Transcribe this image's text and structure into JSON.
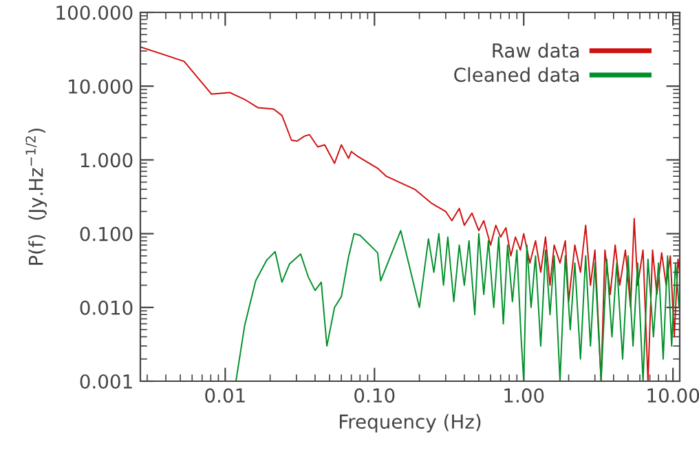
{
  "chart_data": {
    "type": "line",
    "xlabel": "Frequency (Hz)",
    "ylabel": "P(f)  (Jy.Hz$^{−1/2}$)",
    "log": "xy",
    "xlim": [
      0.0027,
      11.1
    ],
    "ylim": [
      0.001,
      100
    ],
    "xticks": [
      {
        "value": 0.01,
        "label": "0.01"
      },
      {
        "value": 0.1,
        "label": "0.10"
      },
      {
        "value": 1,
        "label": "1.00"
      },
      {
        "value": 10,
        "label": "10.00"
      }
    ],
    "yticks": [
      {
        "value": 0.001,
        "label": "0.001"
      },
      {
        "value": 0.01,
        "label": "0.010"
      },
      {
        "value": 0.1,
        "label": "0.100"
      },
      {
        "value": 1,
        "label": "1.000"
      },
      {
        "value": 10,
        "label": "10.000"
      },
      {
        "value": 100,
        "label": "100.000"
      }
    ],
    "grid": false,
    "legend": "top right",
    "line_style": "solid",
    "marker": "none",
    "series": [
      {
        "name": "Raw data",
        "color": "#d01010",
        "x": [
          0.0027,
          0.0053,
          0.0081,
          0.0107,
          0.0135,
          0.0166,
          0.0211,
          0.024,
          0.0278,
          0.0303,
          0.034,
          0.0367,
          0.0417,
          0.0464,
          0.054,
          0.06,
          0.067,
          0.07,
          0.076,
          0.105,
          0.12,
          0.186,
          0.24,
          0.3,
          0.33,
          0.37,
          0.4,
          0.45,
          0.5,
          0.54,
          0.6,
          0.65,
          0.7,
          0.76,
          0.82,
          0.88,
          0.95,
          1.0,
          1.1,
          1.2,
          1.3,
          1.4,
          1.5,
          1.6,
          1.75,
          1.9,
          2.0,
          2.2,
          2.4,
          2.6,
          2.8,
          3.0,
          3.3,
          3.5,
          3.8,
          4.1,
          4.4,
          4.8,
          5.2,
          5.5,
          5.8,
          6.3,
          6.8,
          7.3,
          7.8,
          8.4,
          9.0,
          9.6,
          10.2,
          10.8,
          11.1
        ],
        "values": [
          34,
          21.7,
          7.8,
          8.2,
          6.6,
          5.1,
          4.9,
          4.0,
          1.85,
          1.8,
          2.1,
          2.2,
          1.5,
          1.6,
          0.9,
          1.6,
          1.05,
          1.3,
          1.14,
          0.77,
          0.6,
          0.4,
          0.26,
          0.2,
          0.15,
          0.22,
          0.13,
          0.19,
          0.11,
          0.15,
          0.07,
          0.13,
          0.09,
          0.12,
          0.05,
          0.09,
          0.06,
          0.1,
          0.04,
          0.08,
          0.03,
          0.09,
          0.02,
          0.07,
          0.04,
          0.08,
          0.012,
          0.07,
          0.03,
          0.13,
          0.02,
          0.06,
          0.001,
          0.06,
          0.015,
          0.07,
          0.02,
          0.06,
          0.01,
          0.16,
          0.02,
          0.06,
          0.001,
          0.06,
          0.015,
          0.055,
          0.02,
          0.05,
          0.004,
          0.045,
          0.03
        ]
      },
      {
        "name": "Cleaned data",
        "color": "#00902a",
        "x": [
          0.0118,
          0.0135,
          0.016,
          0.019,
          0.0216,
          0.024,
          0.027,
          0.032,
          0.036,
          0.04,
          0.044,
          0.048,
          0.054,
          0.06,
          0.067,
          0.073,
          0.08,
          0.105,
          0.11,
          0.15,
          0.2,
          0.23,
          0.25,
          0.27,
          0.29,
          0.31,
          0.34,
          0.37,
          0.4,
          0.43,
          0.47,
          0.5,
          0.54,
          0.58,
          0.63,
          0.68,
          0.73,
          0.78,
          0.84,
          0.9,
          0.96,
          1.0,
          1.05,
          1.12,
          1.2,
          1.3,
          1.4,
          1.5,
          1.6,
          1.75,
          1.9,
          2.05,
          2.2,
          2.4,
          2.6,
          2.8,
          3.0,
          3.3,
          3.6,
          3.9,
          4.2,
          4.6,
          5.0,
          5.4,
          5.8,
          6.3,
          6.8,
          7.4,
          8.0,
          8.6,
          9.2,
          9.8,
          10.4,
          11.0
        ],
        "values": [
          0.001,
          0.0057,
          0.023,
          0.044,
          0.057,
          0.022,
          0.039,
          0.053,
          0.026,
          0.017,
          0.022,
          0.003,
          0.01,
          0.014,
          0.048,
          0.1,
          0.095,
          0.055,
          0.023,
          0.11,
          0.01,
          0.085,
          0.03,
          0.1,
          0.02,
          0.09,
          0.012,
          0.07,
          0.02,
          0.08,
          0.008,
          0.1,
          0.015,
          0.08,
          0.01,
          0.09,
          0.006,
          0.07,
          0.012,
          0.06,
          0.004,
          0.001,
          0.07,
          0.01,
          0.05,
          0.003,
          0.06,
          0.008,
          0.05,
          0.001,
          0.05,
          0.005,
          0.04,
          0.002,
          0.05,
          0.003,
          0.04,
          0.001,
          0.045,
          0.004,
          0.04,
          0.002,
          0.05,
          0.003,
          0.04,
          0.001,
          0.045,
          0.004,
          0.04,
          0.002,
          0.05,
          0.003,
          0.04,
          0.01
        ]
      }
    ]
  }
}
